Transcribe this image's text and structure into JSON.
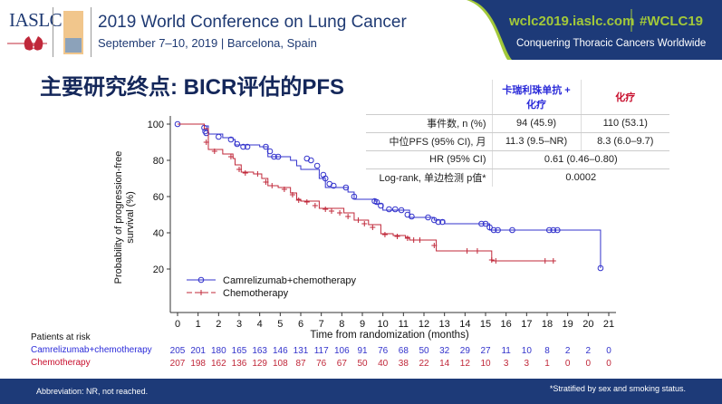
{
  "header": {
    "logo": "IASLC",
    "conference": "2019 World Conference on Lung Cancer",
    "dates": "September 7–10, 2019 | Barcelona, Spain",
    "website": "wclc2019.iaslc.com",
    "hashtag": "#WCLC19",
    "tagline": "Conquering Thoracic Cancers Worldwide"
  },
  "title": "主要研究终点: BICR评估的PFS",
  "table": {
    "col_blue": "卡瑞利珠单抗 + 化疗",
    "col_red": "化疗",
    "rows": [
      {
        "label": "事件数, n (%)",
        "blue": "94 (45.9)",
        "red": "110 (53.1)"
      },
      {
        "label": "中位PFS (95% CI), 月",
        "blue": "11.3 (9.5–NR)",
        "red": "8.3 (6.0–9.7)"
      },
      {
        "label": "HR (95% CI)",
        "both": "0.61 (0.46–0.80)"
      },
      {
        "label": "Log-rank, 单边检测 p值*",
        "both": "0.0002"
      }
    ]
  },
  "chart_data": {
    "type": "line",
    "xlabel": "Time from randomization (months)",
    "ylabel": "Probability of progression-free survival (%)",
    "xlim": [
      0,
      21
    ],
    "ylim": [
      20,
      100
    ],
    "xticks": [
      0,
      1,
      2,
      3,
      4,
      5,
      6,
      7,
      8,
      9,
      10,
      11,
      12,
      13,
      14,
      15,
      16,
      17,
      18,
      19,
      20,
      21
    ],
    "yticks": [
      20,
      40,
      60,
      80,
      100
    ],
    "legend_position": "bottom-left",
    "colors": {
      "blue": "#3333cc",
      "red": "#c0283a"
    },
    "series": [
      {
        "name": "Camrelizumab+chemotherapy",
        "marker": "circle",
        "x": [
          0,
          1.3,
          1.5,
          2.2,
          2.7,
          2.8,
          4.0,
          4.4,
          5.5,
          5.8,
          6.0,
          6.9,
          7.2,
          8.2,
          8.3,
          8.6,
          9.6,
          9.7,
          10.0,
          10.9,
          11.3,
          12.2,
          12.5,
          13.0,
          15.2,
          20.6,
          20.6
        ],
        "y": [
          100,
          99,
          94.5,
          92.5,
          91.5,
          88.5,
          87.5,
          82,
          80,
          77,
          75,
          70,
          65,
          65,
          62.5,
          58.5,
          57.5,
          56,
          52.5,
          52.5,
          48.5,
          48.5,
          47,
          45,
          41.5,
          41.5,
          20.5
        ],
        "censored": [
          [
            0,
            100
          ],
          [
            1.3,
            98
          ],
          [
            1.35,
            96
          ],
          [
            1.4,
            95
          ],
          [
            2.0,
            93
          ],
          [
            2.6,
            91.5
          ],
          [
            2.9,
            89
          ],
          [
            3.2,
            87.5
          ],
          [
            3.4,
            87.5
          ],
          [
            4.3,
            87.5
          ],
          [
            4.5,
            85
          ],
          [
            4.7,
            82
          ],
          [
            4.9,
            82
          ],
          [
            6.3,
            81
          ],
          [
            6.5,
            80
          ],
          [
            6.8,
            77
          ],
          [
            7.1,
            72
          ],
          [
            7.2,
            70
          ],
          [
            7.4,
            67
          ],
          [
            7.6,
            66
          ],
          [
            8.2,
            65
          ],
          [
            8.6,
            60
          ],
          [
            9.6,
            57.5
          ],
          [
            9.7,
            57
          ],
          [
            9.9,
            55
          ],
          [
            10.3,
            53
          ],
          [
            10.6,
            53
          ],
          [
            10.9,
            52.5
          ],
          [
            11.2,
            50
          ],
          [
            11.4,
            49
          ],
          [
            12.2,
            48.5
          ],
          [
            12.5,
            47
          ],
          [
            12.7,
            46
          ],
          [
            12.9,
            46
          ],
          [
            14.8,
            45
          ],
          [
            15.0,
            45
          ],
          [
            15.2,
            43
          ],
          [
            15.4,
            41.5
          ],
          [
            15.6,
            41.5
          ],
          [
            16.3,
            41.5
          ],
          [
            18.1,
            41.5
          ],
          [
            18.3,
            41.5
          ],
          [
            18.5,
            41.5
          ],
          [
            20.6,
            20.5
          ]
        ]
      },
      {
        "name": "Chemotherapy",
        "marker": "plus",
        "x": [
          0,
          1.3,
          1.5,
          2.2,
          2.7,
          2.8,
          3.1,
          3.7,
          4.1,
          4.4,
          4.9,
          5.5,
          5.8,
          6.0,
          6.9,
          8.1,
          8.6,
          9.3,
          9.9,
          10.5,
          11.1,
          11.3,
          12.3,
          12.6,
          15.2,
          15.3,
          18.3
        ],
        "y": [
          100,
          97.5,
          86,
          83.5,
          81,
          77.5,
          73.5,
          72.5,
          70,
          66,
          65,
          62,
          58.5,
          57.5,
          53.5,
          51,
          47,
          44.5,
          39.5,
          38.5,
          37.5,
          36,
          36,
          30,
          30,
          24.5,
          24.5
        ],
        "censored": [
          [
            1.4,
            90
          ],
          [
            1.8,
            85
          ],
          [
            2.6,
            82
          ],
          [
            3.0,
            75
          ],
          [
            3.3,
            73
          ],
          [
            3.9,
            72.5
          ],
          [
            4.3,
            68
          ],
          [
            4.6,
            66
          ],
          [
            5.2,
            64
          ],
          [
            5.6,
            61
          ],
          [
            5.9,
            58
          ],
          [
            6.3,
            57
          ],
          [
            6.7,
            55
          ],
          [
            7.2,
            53
          ],
          [
            7.5,
            52
          ],
          [
            7.9,
            51
          ],
          [
            8.3,
            49
          ],
          [
            8.8,
            47
          ],
          [
            9.1,
            45
          ],
          [
            9.5,
            43
          ],
          [
            10.1,
            39
          ],
          [
            10.7,
            38
          ],
          [
            11.2,
            37
          ],
          [
            11.5,
            36
          ],
          [
            11.8,
            36
          ],
          [
            12.5,
            33
          ],
          [
            14.1,
            30
          ],
          [
            14.6,
            30
          ],
          [
            15.3,
            25
          ],
          [
            15.5,
            24.5
          ],
          [
            17.9,
            24.5
          ],
          [
            18.3,
            24.5
          ]
        ]
      }
    ]
  },
  "at_risk": {
    "title": "Patients at risk",
    "rows": [
      {
        "name": "Camrelizumab+chemotherapy",
        "values": [
          205,
          201,
          180,
          165,
          163,
          146,
          131,
          117,
          106,
          91,
          76,
          68,
          50,
          32,
          29,
          27,
          11,
          10,
          8,
          2,
          2,
          0
        ]
      },
      {
        "name": "Chemotherapy",
        "values": [
          207,
          198,
          162,
          136,
          129,
          108,
          87,
          76,
          67,
          50,
          40,
          38,
          22,
          14,
          12,
          10,
          3,
          3,
          1,
          0,
          0,
          0
        ]
      }
    ]
  },
  "footer": {
    "left": "Abbreviation: NR, not reached.",
    "right": "*Stratified by sex and smoking status."
  }
}
